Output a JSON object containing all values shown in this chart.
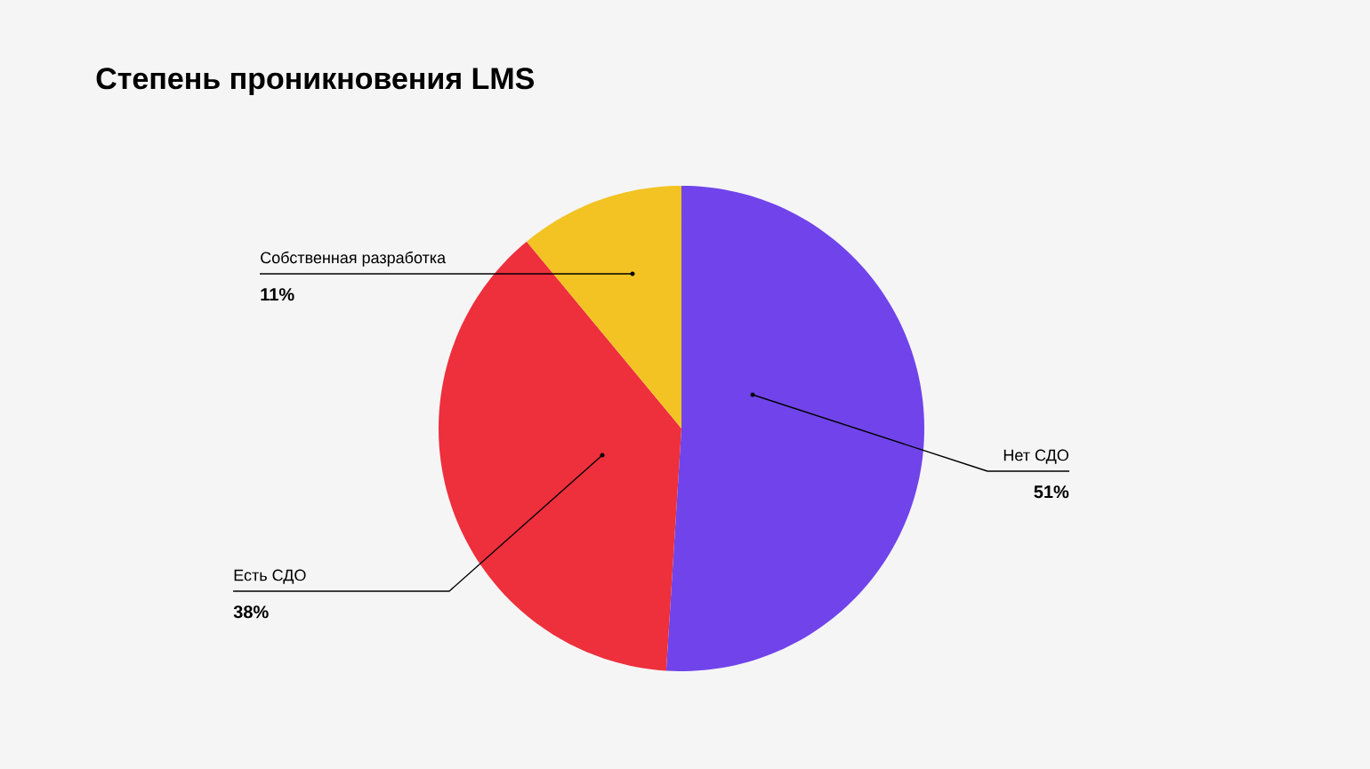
{
  "chart_data": {
    "type": "pie",
    "title": "Степень проникновения LMS",
    "categories": [
      "Нет СДО",
      "Есть СДО",
      "Собственная разработка"
    ],
    "values": [
      51,
      38,
      11
    ],
    "colors": [
      "#7044ea",
      "#ee2f3c",
      "#f2c322"
    ],
    "value_labels": [
      "51%",
      "38%",
      "11%"
    ]
  }
}
